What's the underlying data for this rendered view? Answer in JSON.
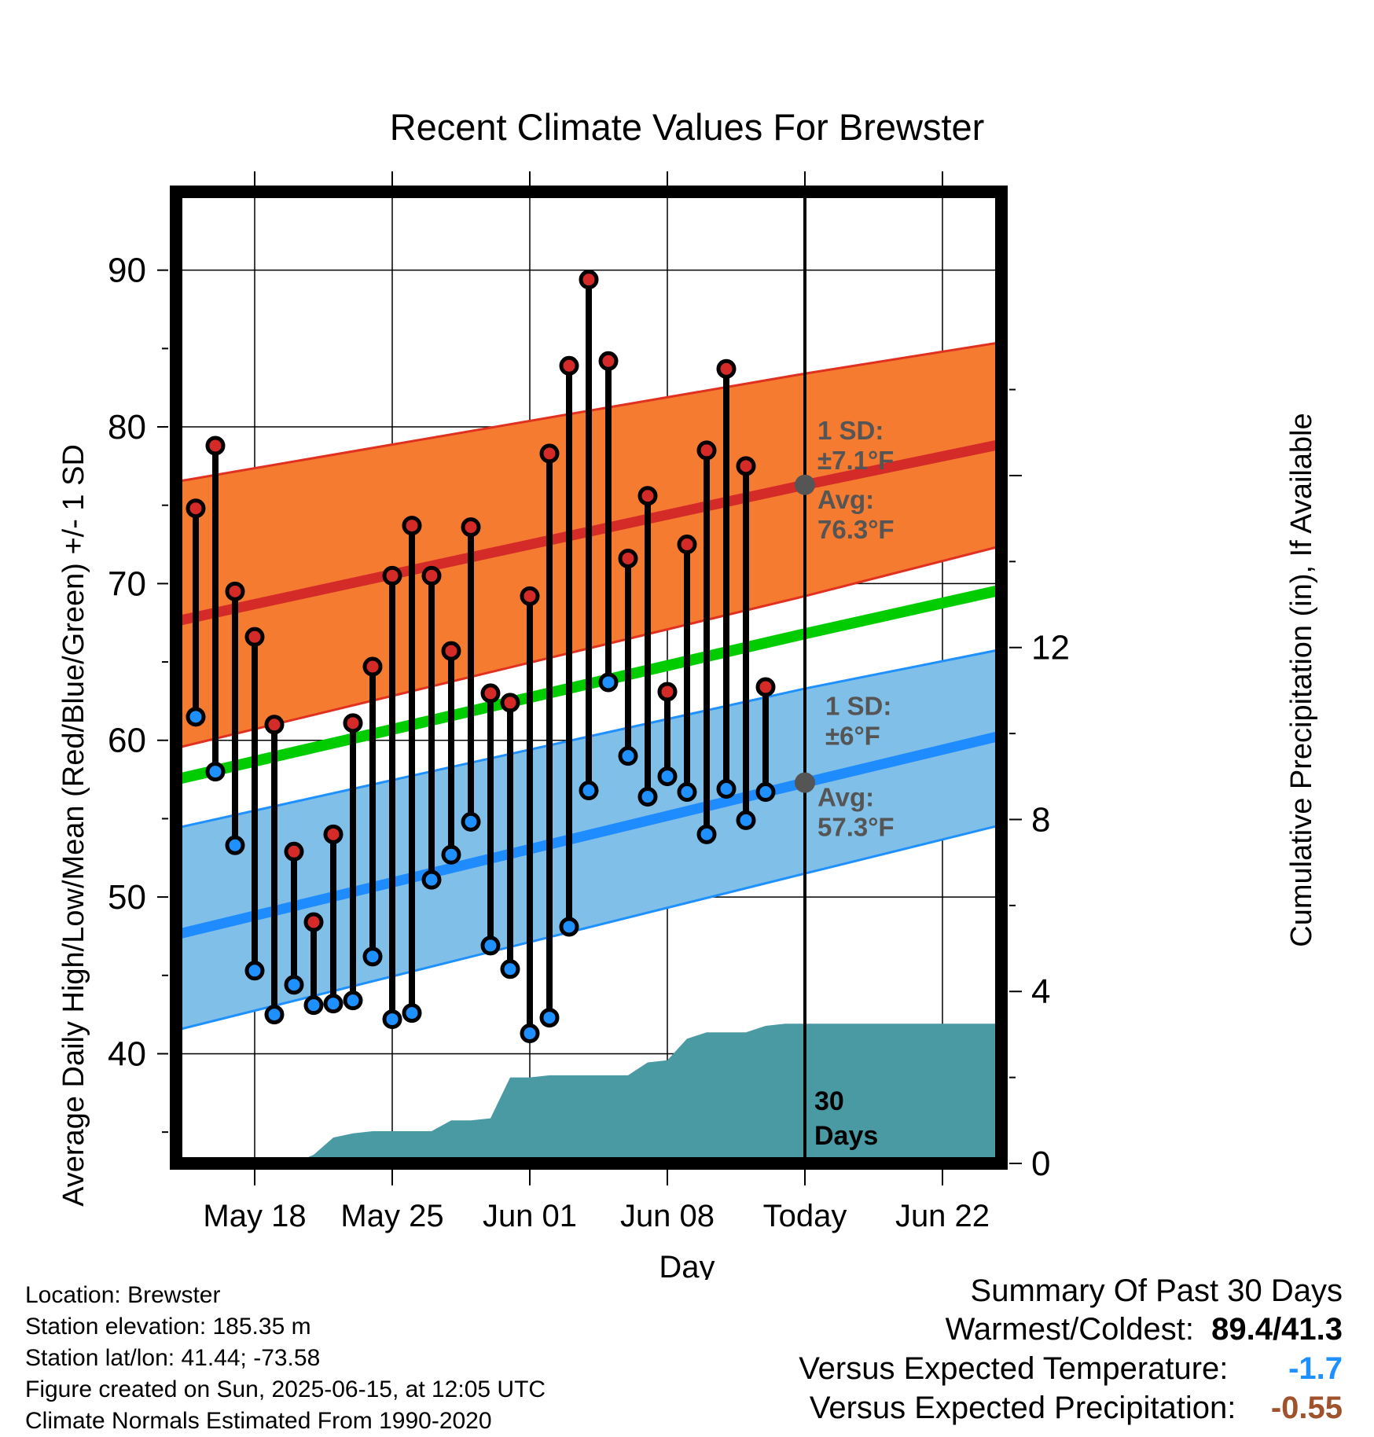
{
  "chart_data": {
    "type": "line",
    "title": "Recent Climate Values For Brewster",
    "xlabel": "Day",
    "ylabel": "Average Daily High/Low/Mean (Red/Blue/Green) +/- 1 SD",
    "y2label": "Cumulative Precipitation (in), If Available",
    "x_tick_labels": [
      "May 18",
      "May 25",
      "Jun 01",
      "Jun 08",
      "Today",
      "Jun 22"
    ],
    "x_tick_dates": [
      "2025-05-18",
      "2025-05-25",
      "2025-06-01",
      "2025-06-08",
      "2025-06-15",
      "2025-06-22"
    ],
    "xlim": [
      "2025-05-14",
      "2025-06-25"
    ],
    "today": "2025-06-15",
    "ylim": [
      33,
      95
    ],
    "yticks": [
      40,
      50,
      60,
      70,
      80,
      90
    ],
    "y2lim": [
      0,
      22.6
    ],
    "y2ticks": [
      0,
      4,
      8,
      12
    ],
    "grid": true,
    "colors": {
      "high_band": "#f47b30",
      "high_band_edge": "#e03020",
      "high_mean": "#d42a28",
      "mean_line": "#00cc00",
      "low_band": "#80c0e8",
      "low_band_edge": "#1e90ff",
      "low_mean": "#1e8cff",
      "precip": "#4a9aa4",
      "high_marker": "#d42a28",
      "low_marker": "#1e90ff",
      "avg_marker": "#555555",
      "annotation_text": "#555555"
    },
    "normals": {
      "dates": [
        "2025-05-14",
        "2025-06-15",
        "2025-06-25"
      ],
      "high_avg": [
        67.6,
        76.3,
        78.9
      ],
      "high_upper": [
        76.5,
        83.4,
        85.4
      ],
      "high_lower": [
        59.5,
        69.2,
        72.4
      ],
      "mean_avg": [
        57.5,
        66.8,
        69.6
      ],
      "low_avg": [
        47.6,
        57.3,
        60.3
      ],
      "low_upper": [
        54.4,
        63.3,
        65.8
      ],
      "low_lower": [
        41.5,
        51.5,
        54.6
      ]
    },
    "daily": {
      "dates": [
        "2025-05-15",
        "2025-05-16",
        "2025-05-17",
        "2025-05-18",
        "2025-05-19",
        "2025-05-20",
        "2025-05-21",
        "2025-05-22",
        "2025-05-23",
        "2025-05-24",
        "2025-05-25",
        "2025-05-26",
        "2025-05-27",
        "2025-05-28",
        "2025-05-29",
        "2025-05-30",
        "2025-05-31",
        "2025-06-01",
        "2025-06-02",
        "2025-06-03",
        "2025-06-04",
        "2025-06-05",
        "2025-06-06",
        "2025-06-07",
        "2025-06-08",
        "2025-06-09",
        "2025-06-10",
        "2025-06-11",
        "2025-06-12",
        "2025-06-13",
        "2025-06-14"
      ],
      "high": [
        74.8,
        78.8,
        69.5,
        66.6,
        61.0,
        52.9,
        48.4,
        54.0,
        61.1,
        64.7,
        70.5,
        73.7,
        70.5,
        65.7,
        73.6,
        63.0,
        62.4,
        69.2,
        78.3,
        83.9,
        89.4,
        84.2,
        71.6,
        75.6,
        63.1,
        72.5,
        78.5,
        83.7,
        77.5,
        63.4,
        null
      ],
      "low": [
        61.5,
        58.0,
        53.3,
        45.3,
        42.5,
        44.4,
        43.1,
        43.2,
        43.4,
        46.2,
        42.2,
        42.6,
        51.1,
        52.7,
        54.8,
        46.9,
        45.4,
        41.3,
        42.3,
        48.1,
        56.8,
        63.7,
        59.0,
        56.4,
        57.7,
        56.7,
        54.0,
        56.9,
        54.9,
        56.7,
        null
      ]
    },
    "precip": {
      "dates": [
        "2025-05-14",
        "2025-05-16",
        "2025-05-17",
        "2025-05-18",
        "2025-05-20",
        "2025-05-21",
        "2025-05-22",
        "2025-05-23",
        "2025-05-24",
        "2025-05-25",
        "2025-05-26",
        "2025-05-27",
        "2025-05-28",
        "2025-05-29",
        "2025-05-30",
        "2025-05-31",
        "2025-06-01",
        "2025-06-02",
        "2025-06-03",
        "2025-06-04",
        "2025-06-05",
        "2025-06-06",
        "2025-06-07",
        "2025-06-08",
        "2025-06-09",
        "2025-06-10",
        "2025-06-11",
        "2025-06-12",
        "2025-06-13",
        "2025-06-14",
        "2025-06-15",
        "2025-06-25"
      ],
      "values": [
        0,
        0,
        0,
        0,
        0,
        0.2,
        0.6,
        0.7,
        0.75,
        0.75,
        0.75,
        0.75,
        1.0,
        1.0,
        1.05,
        2.0,
        2.0,
        2.05,
        2.05,
        2.05,
        2.05,
        2.05,
        2.35,
        2.4,
        2.9,
        3.05,
        3.05,
        3.05,
        3.2,
        3.25,
        3.25,
        3.25
      ]
    },
    "annotations": {
      "high_sd_label": "1 SD:",
      "high_sd_value": "±7.1°F",
      "high_avg_label": "Avg:",
      "high_avg_value": "76.3°F",
      "low_sd_label": "1 SD:",
      "low_sd_value": "±6°F",
      "low_avg_label": "Avg:",
      "low_avg_value": "57.3°F",
      "window_line1": "30",
      "window_line2": "Days"
    }
  },
  "info": {
    "location": "Location: Brewster",
    "elevation": "Station elevation: 185.35 m",
    "latlon": "Station lat/lon: 41.44; -73.58",
    "created": "Figure created on Sun, 2025-06-15, at 12:05 UTC",
    "normals": "Climate Normals Estimated From 1990-2020"
  },
  "summary": {
    "title": "Summary Of Past 30 Days",
    "warmest_coldest_label": "Warmest/Coldest:",
    "warmest_coldest_value": "89.4/41.3",
    "temp_label": "Versus Expected Temperature:",
    "temp_value": "-1.7",
    "temp_color": "#1e90ff",
    "precip_label": "Versus Expected Precipitation:",
    "precip_value": "-0.55",
    "precip_color": "#a0522d"
  }
}
